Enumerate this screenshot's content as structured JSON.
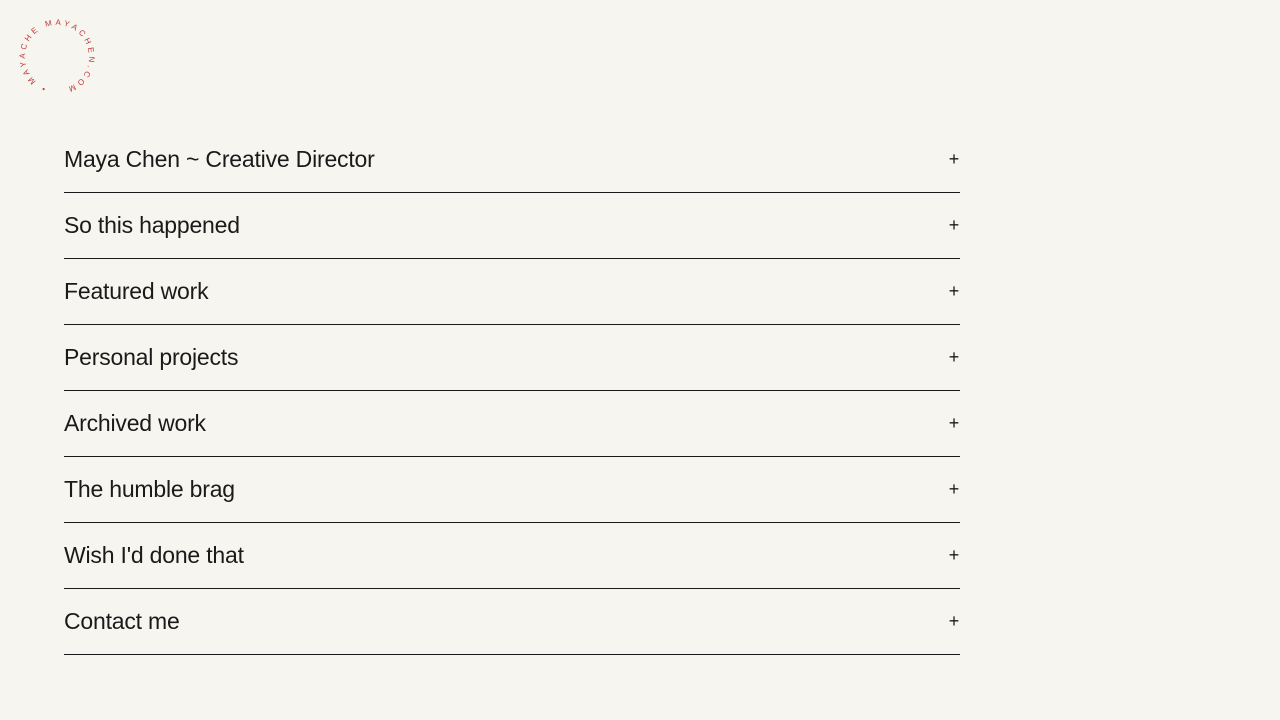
{
  "logo": {
    "text": "• MAYACHE MAYACHEN.COM ",
    "color": "#c0393b"
  },
  "menu": {
    "items": [
      {
        "label": "Maya Chen ~ Creative Director",
        "icon": "+"
      },
      {
        "label": "So this happened",
        "icon": "+"
      },
      {
        "label": "Featured work",
        "icon": "+"
      },
      {
        "label": "Personal projects",
        "icon": "+"
      },
      {
        "label": "Archived work",
        "icon": "+"
      },
      {
        "label": "The humble brag",
        "icon": "+"
      },
      {
        "label": "Wish I'd done that",
        "icon": "+"
      },
      {
        "label": "Contact me",
        "icon": "+"
      }
    ]
  }
}
